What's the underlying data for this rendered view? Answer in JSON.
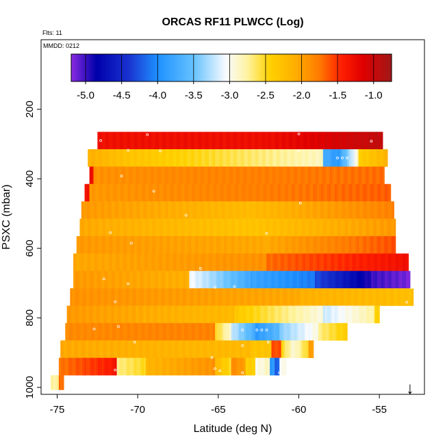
{
  "chart_data": {
    "type": "heatmap",
    "title": "ORCAS RF11 PLWCC (Log)",
    "flights_label": "Flts: 11",
    "date_label": "MMDD: 0212",
    "xlabel": "Latitude (deg N)",
    "ylabel": "PSXC (mbar)",
    "xlim": [
      -76.0,
      -52.2
    ],
    "ylim": [
      1020,
      0
    ],
    "x_ticks": [
      -75,
      -70,
      -65,
      -60,
      -55
    ],
    "x_tick_labels": [
      "-75",
      "-70",
      "-65",
      "-60",
      "-55"
    ],
    "y_ticks": [
      200,
      400,
      600,
      800,
      1000
    ],
    "y_tick_labels": [
      "200",
      "400",
      "600",
      "800",
      "1000"
    ],
    "colorbar": {
      "range": [
        -5.2,
        -0.75
      ],
      "ticks": [
        -5.0,
        -4.5,
        -4.0,
        -3.5,
        -3.0,
        -2.5,
        -2.0,
        -1.5,
        -1.0
      ],
      "tick_labels": [
        "-5.0",
        "-4.5",
        "-4.0",
        "-3.5",
        "-3.0",
        "-2.5",
        "-2.0",
        "-1.5",
        "-1.0"
      ],
      "stops": [
        {
          "v": -5.2,
          "c": "#8a2be2"
        },
        {
          "v": -4.85,
          "c": "#0000aa"
        },
        {
          "v": -4.4,
          "c": "#1a33d0"
        },
        {
          "v": -4.0,
          "c": "#1e90ff"
        },
        {
          "v": -3.5,
          "c": "#66c2ff"
        },
        {
          "v": -3.05,
          "c": "#f8fbff"
        },
        {
          "v": -2.75,
          "c": "#fff3a0"
        },
        {
          "v": -2.45,
          "c": "#ffd200"
        },
        {
          "v": -2.1,
          "c": "#ffb000"
        },
        {
          "v": -1.75,
          "c": "#ff7a00"
        },
        {
          "v": -1.45,
          "c": "#ff2000"
        },
        {
          "v": -1.15,
          "c": "#e00000"
        },
        {
          "v": -0.75,
          "c": "#a01818"
        }
      ]
    },
    "rows": [
      {
        "p_top": 265,
        "p_bot": 315,
        "lat_start": -72.5,
        "lat_end": -54.8,
        "segments": [
          {
            "from": -72.5,
            "to": -62,
            "v1": -1.3,
            "v2": -1.28
          },
          {
            "from": -62,
            "to": -54.8,
            "v1": -1.28,
            "v2": -0.95
          }
        ]
      },
      {
        "p_top": 315,
        "p_bot": 365,
        "lat_start": -73.1,
        "lat_end": -54.5,
        "segments": [
          {
            "from": -73.1,
            "to": -70.5,
            "v1": -2.1,
            "v2": -2.3
          },
          {
            "from": -70.5,
            "to": -58.5,
            "v1": -2.3,
            "v2": -2.85
          },
          {
            "from": -58.5,
            "to": -57.6,
            "v1": -3.7,
            "v2": -3.9
          },
          {
            "from": -57.6,
            "to": -56.3,
            "v1": -3.9,
            "v2": -2.9
          },
          {
            "from": -56.3,
            "to": -54.5,
            "v1": -2.4,
            "v2": -2.15
          }
        ]
      },
      {
        "p_top": 365,
        "p_bot": 415,
        "lat_start": -73.0,
        "lat_end": -54.7,
        "segments": [
          {
            "from": -73.0,
            "to": -72.75,
            "v1": -1.3,
            "v2": -1.3
          },
          {
            "from": -72.75,
            "to": -54.7,
            "v1": -1.9,
            "v2": -1.7
          }
        ]
      },
      {
        "p_top": 415,
        "p_bot": 465,
        "lat_start": -73.3,
        "lat_end": -54.3,
        "segments": [
          {
            "from": -73.3,
            "to": -73.0,
            "v1": -1.3,
            "v2": -1.3
          },
          {
            "from": -73.0,
            "to": -54.3,
            "v1": -1.95,
            "v2": -1.65
          }
        ]
      },
      {
        "p_top": 465,
        "p_bot": 515,
        "lat_start": -73.5,
        "lat_end": -54.1,
        "segments": [
          {
            "from": -73.5,
            "to": -63,
            "v1": -1.95,
            "v2": -2.2
          },
          {
            "from": -63,
            "to": -54.1,
            "v1": -2.2,
            "v2": -1.8
          }
        ]
      },
      {
        "p_top": 515,
        "p_bot": 565,
        "lat_start": -73.6,
        "lat_end": -54.0,
        "segments": [
          {
            "from": -73.6,
            "to": -63,
            "v1": -2.05,
            "v2": -2.3
          },
          {
            "from": -63,
            "to": -54.0,
            "v1": -2.3,
            "v2": -1.95
          }
        ]
      },
      {
        "p_top": 565,
        "p_bot": 615,
        "lat_start": -73.8,
        "lat_end": -54.0,
        "segments": [
          {
            "from": -73.8,
            "to": -62,
            "v1": -1.95,
            "v2": -2.05
          },
          {
            "from": -62,
            "to": -54.0,
            "v1": -2.05,
            "v2": -1.6
          }
        ]
      },
      {
        "p_top": 615,
        "p_bot": 665,
        "lat_start": -74.0,
        "lat_end": -53.2,
        "segments": [
          {
            "from": -74.0,
            "to": -62,
            "v1": -2.05,
            "v2": -1.9
          },
          {
            "from": -62,
            "to": -53.2,
            "v1": -1.7,
            "v2": -1.3
          }
        ]
      },
      {
        "p_top": 665,
        "p_bot": 715,
        "lat_start": -74.0,
        "lat_end": -53.1,
        "segments": [
          {
            "from": -74.0,
            "to": -66.8,
            "v1": -1.95,
            "v2": -2.1
          },
          {
            "from": -66.8,
            "to": -63,
            "v1": -3.05,
            "v2": -3.75
          },
          {
            "from": -63,
            "to": -59,
            "v1": -3.8,
            "v2": -4.1
          },
          {
            "from": -59,
            "to": -55.5,
            "v1": -4.3,
            "v2": -4.95
          },
          {
            "from": -55.5,
            "to": -53.1,
            "v1": -5.0,
            "v2": -5.15
          }
        ]
      },
      {
        "p_top": 715,
        "p_bot": 765,
        "lat_start": -74.2,
        "lat_end": -52.9,
        "segments": [
          {
            "from": -74.2,
            "to": -60,
            "v1": -1.9,
            "v2": -2.05
          },
          {
            "from": -60,
            "to": -52.9,
            "v1": -2.1,
            "v2": -2.25
          }
        ]
      },
      {
        "p_top": 765,
        "p_bot": 815,
        "lat_start": -74.4,
        "lat_end": -55.0,
        "segments": [
          {
            "from": -74.4,
            "to": -64,
            "v1": -1.95,
            "v2": -2.2
          },
          {
            "from": -64,
            "to": -58.5,
            "v1": -2.35,
            "v2": -2.95
          },
          {
            "from": -58.5,
            "to": -55.3,
            "v1": -3.2,
            "v2": -2.75
          },
          {
            "from": -55.3,
            "to": -55.0,
            "v1": -2.45,
            "v2": -2.45
          }
        ]
      },
      {
        "p_top": 815,
        "p_bot": 865,
        "lat_start": -74.5,
        "lat_end": -57.0,
        "segments": [
          {
            "from": -74.5,
            "to": -65.2,
            "v1": -1.85,
            "v2": -1.8
          },
          {
            "from": -65.2,
            "to": -64.2,
            "v1": -2.5,
            "v2": -2.9
          },
          {
            "from": -64.2,
            "to": -62.7,
            "v1": -3.2,
            "v2": -3.7
          },
          {
            "from": -62.7,
            "to": -61.2,
            "v1": -3.9,
            "v2": -3.6
          },
          {
            "from": -61.2,
            "to": -58.8,
            "v1": -3.4,
            "v2": -2.95
          },
          {
            "from": -58.8,
            "to": -57.0,
            "v1": -2.7,
            "v2": -2.4
          }
        ]
      },
      {
        "p_top": 865,
        "p_bot": 915,
        "lat_start": -74.8,
        "lat_end": -59.1,
        "segments": [
          {
            "from": -74.8,
            "to": -63,
            "v1": -2.05,
            "v2": -2.2
          },
          {
            "from": -63,
            "to": -61.7,
            "v1": -2.3,
            "v2": -2.3
          },
          {
            "from": -61.7,
            "to": -61.1,
            "v1": -1.6,
            "v2": -1.6
          },
          {
            "from": -61.1,
            "to": -60.3,
            "v1": -2.5,
            "v2": -2.9
          },
          {
            "from": -60.3,
            "to": -59.4,
            "v1": -2.9,
            "v2": -2.5
          },
          {
            "from": -59.4,
            "to": -59.1,
            "v1": -2.0,
            "v2": -2.0
          }
        ]
      },
      {
        "p_top": 915,
        "p_bot": 965,
        "lat_start": -74.9,
        "lat_end": -60.8,
        "segments": [
          {
            "from": -74.9,
            "to": -71.5,
            "v1": -1.75,
            "v2": -1.4
          },
          {
            "from": -71.5,
            "to": -71.3,
            "v1": -1.3,
            "v2": -1.3
          },
          {
            "from": -71.3,
            "to": -69.5,
            "v1": -2.7,
            "v2": -2.5
          },
          {
            "from": -69.5,
            "to": -65.2,
            "v1": -2.15,
            "v2": -1.9
          },
          {
            "from": -65.2,
            "to": -64.2,
            "v1": -2.2,
            "v2": -2.5
          },
          {
            "from": -64.2,
            "to": -63.3,
            "v1": -1.85,
            "v2": -2.0
          },
          {
            "from": -63.3,
            "to": -62.7,
            "v1": -2.4,
            "v2": -2.4
          },
          {
            "from": -62.7,
            "to": -61.8,
            "v1": -3.0,
            "v2": -2.85
          },
          {
            "from": -61.8,
            "to": -61.5,
            "v1": -3.9,
            "v2": -3.9
          },
          {
            "from": -61.5,
            "to": -61.2,
            "v1": -4.2,
            "v2": -4.2
          },
          {
            "from": -61.2,
            "to": -60.8,
            "v1": -3.0,
            "v2": -3.0
          }
        ]
      },
      {
        "p_top": 965,
        "p_bot": 1007,
        "lat_start": -75.4,
        "lat_end": -74.6,
        "segments": [
          {
            "from": -75.4,
            "to": -74.9,
            "v1": -2.75,
            "v2": -2.75
          },
          {
            "from": -74.9,
            "to": -74.6,
            "v1": -1.7,
            "v2": -1.7
          }
        ]
      }
    ],
    "markers": [
      {
        "lat": -69.4,
        "p": 273
      },
      {
        "lat": -60.0,
        "p": 271
      },
      {
        "lat": -72.3,
        "p": 290
      },
      {
        "lat": -55.5,
        "p": 292
      },
      {
        "lat": -70.6,
        "p": 318
      },
      {
        "lat": -68.6,
        "p": 320
      },
      {
        "lat": -60.0,
        "p": 320
      },
      {
        "lat": -57.6,
        "p": 340
      },
      {
        "lat": -57.3,
        "p": 340
      },
      {
        "lat": -57.0,
        "p": 340
      },
      {
        "lat": -71.0,
        "p": 392
      },
      {
        "lat": -69.0,
        "p": 436
      },
      {
        "lat": -59.9,
        "p": 470
      },
      {
        "lat": -67.0,
        "p": 505
      },
      {
        "lat": -71.7,
        "p": 555
      },
      {
        "lat": -62.0,
        "p": 557
      },
      {
        "lat": -70.4,
        "p": 585
      },
      {
        "lat": -66.1,
        "p": 658
      },
      {
        "lat": -72.1,
        "p": 688
      },
      {
        "lat": -70.6,
        "p": 702
      },
      {
        "lat": -66.5,
        "p": 705
      },
      {
        "lat": -65.2,
        "p": 712
      },
      {
        "lat": -53.0,
        "p": 713
      },
      {
        "lat": -64.0,
        "p": 710
      },
      {
        "lat": -71.4,
        "p": 754
      },
      {
        "lat": -53.3,
        "p": 755
      },
      {
        "lat": -71.2,
        "p": 825
      },
      {
        "lat": -72.7,
        "p": 832
      },
      {
        "lat": -70.2,
        "p": 870
      },
      {
        "lat": -63.5,
        "p": 835
      },
      {
        "lat": -62.6,
        "p": 835
      },
      {
        "lat": -62.3,
        "p": 835
      },
      {
        "lat": -62.0,
        "p": 835
      },
      {
        "lat": -61.9,
        "p": 870
      },
      {
        "lat": -63.5,
        "p": 880
      },
      {
        "lat": -65.4,
        "p": 914
      },
      {
        "lat": -65.2,
        "p": 946
      },
      {
        "lat": -64.9,
        "p": 952
      },
      {
        "lat": -63.5,
        "p": 958
      },
      {
        "lat": -61.2,
        "p": 958
      },
      {
        "lat": -71.4,
        "p": 950
      }
    ],
    "annotation": {
      "symbol": "↓",
      "lat": -53.1
    }
  }
}
